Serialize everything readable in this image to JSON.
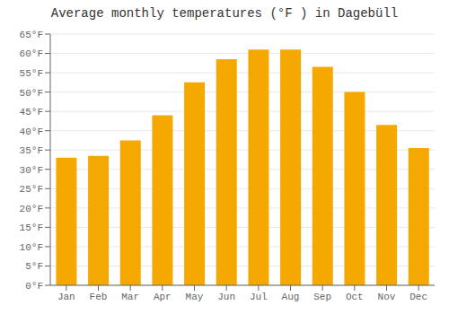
{
  "chart_data": {
    "type": "bar",
    "title": "Average monthly temperatures (°F ) in Dagebüll",
    "categories": [
      "Jan",
      "Feb",
      "Mar",
      "Apr",
      "May",
      "Jun",
      "Jul",
      "Aug",
      "Sep",
      "Oct",
      "Nov",
      "Dec"
    ],
    "values": [
      33,
      33.5,
      37.5,
      44,
      52.5,
      58.5,
      61,
      61,
      56.5,
      50,
      41.5,
      35.5
    ],
    "color": "#F5A800",
    "ylim": [
      0,
      65
    ],
    "yticks": [
      {
        "value": 0,
        "label": "0°F"
      },
      {
        "value": 5,
        "label": "5°F"
      },
      {
        "value": 10,
        "label": "10°F"
      },
      {
        "value": 15,
        "label": "15°F"
      },
      {
        "value": 20,
        "label": "20°F"
      },
      {
        "value": 25,
        "label": "25°F"
      },
      {
        "value": 30,
        "label": "30°F"
      },
      {
        "value": 35,
        "label": "35°F"
      },
      {
        "value": 40,
        "label": "40°F"
      },
      {
        "value": 45,
        "label": "45°F"
      },
      {
        "value": 50,
        "label": "50°F"
      },
      {
        "value": 55,
        "label": "55°F"
      },
      {
        "value": 60,
        "label": "60°F"
      },
      {
        "value": 65,
        "label": "65°F"
      }
    ],
    "grid": true
  }
}
